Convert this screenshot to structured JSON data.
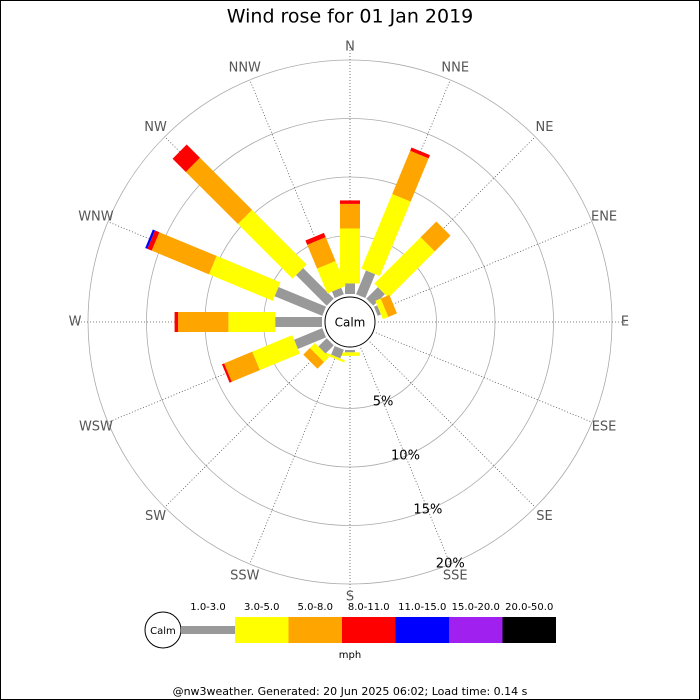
{
  "chart_data": {
    "type": "windrose",
    "title": "Wind rose for 01 Jan 2019",
    "directions": [
      "N",
      "NNE",
      "NE",
      "ENE",
      "E",
      "ESE",
      "SE",
      "SSE",
      "S",
      "SSW",
      "SW",
      "WSW",
      "W",
      "WNW",
      "NW",
      "NNW"
    ],
    "series": [
      {
        "name": "1.0-3.0",
        "color": "#999999",
        "values": [
          0.9,
          2.2,
          1.4,
          0.3,
          0,
          0,
          0,
          0,
          0.2,
          0.8,
          1.0,
          2.6,
          4.0,
          4.4,
          3.7,
          0.6
        ]
      },
      {
        "name": "3.0-5.0",
        "color": "#ffff00",
        "values": [
          4.7,
          6.9,
          5.6,
          0.5,
          0,
          0,
          0,
          0,
          0.3,
          0.2,
          0.6,
          3.7,
          4.0,
          5.9,
          6.6,
          2.3
        ]
      },
      {
        "name": "5.0-8.0",
        "color": "#ffa500",
        "values": [
          2.1,
          4.0,
          1.9,
          0.8,
          0,
          0,
          0,
          0,
          0,
          0,
          0.8,
          2.6,
          4.3,
          5.3,
          6.3,
          2.2
        ]
      },
      {
        "name": "8.0-11.0",
        "color": "#ff0000",
        "values": [
          0.3,
          0.3,
          0,
          0,
          0,
          0,
          0,
          0,
          0,
          0,
          0,
          0.2,
          0.3,
          0.4,
          1.6,
          0.4
        ]
      },
      {
        "name": "11.0-15.0",
        "color": "#0000ff",
        "values": [
          0,
          0,
          0,
          0,
          0,
          0,
          0,
          0,
          0,
          0,
          0,
          0,
          0,
          0.2,
          0,
          0
        ]
      },
      {
        "name": "15.0-20.0",
        "color": "#a020f0",
        "values": [
          0,
          0,
          0,
          0,
          0,
          0,
          0,
          0,
          0,
          0,
          0,
          0,
          0,
          0,
          0,
          0
        ]
      },
      {
        "name": "20.0-50.0",
        "color": "#000000",
        "values": [
          0,
          0,
          0,
          0,
          0,
          0,
          0,
          0,
          0,
          0,
          0,
          0,
          0,
          0,
          0,
          0
        ]
      }
    ],
    "rlim": [
      0,
      20
    ],
    "rticks": [
      {
        "value": 5,
        "label": "5%"
      },
      {
        "value": 10,
        "label": "10%"
      },
      {
        "value": 15,
        "label": "15%"
      },
      {
        "value": 20,
        "label": "20%"
      }
    ],
    "calm_label": "Calm",
    "units": "mph"
  },
  "footer": "@nw3weather. Generated: 20 Jun 2025 06:02; Load time: 0.14 s"
}
